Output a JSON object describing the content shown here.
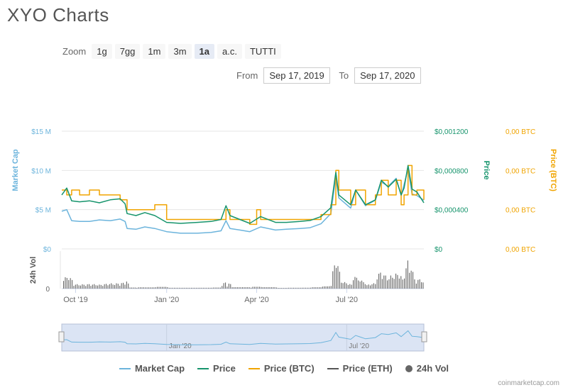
{
  "title": "XYO Charts",
  "zoom": {
    "label": "Zoom",
    "buttons": [
      "1g",
      "7gg",
      "1m",
      "3m",
      "1a",
      "a.c.",
      "TUTTI"
    ],
    "active": "1a"
  },
  "range": {
    "from_label": "From",
    "from_value": "Sep 17, 2019",
    "to_label": "To",
    "to_value": "Sep 17, 2020"
  },
  "colors": {
    "market_cap": "#6cb4dc",
    "price": "#16946c",
    "price_btc": "#f0a400",
    "price_eth": "#555555",
    "volume": "#666666"
  },
  "chart_data": {
    "type": "line",
    "x_start": "2019-09-17",
    "x_end": "2020-09-17",
    "x_tick_labels": [
      {
        "date": "2019-10-01",
        "label": "Oct '19"
      },
      {
        "date": "2020-01-01",
        "label": "Jan '20"
      },
      {
        "date": "2020-04-01",
        "label": "Apr '20"
      },
      {
        "date": "2020-07-01",
        "label": "Jul '20"
      }
    ],
    "navigator_tick_labels": [
      {
        "date": "2020-01-01",
        "label": "Jan '20"
      },
      {
        "date": "2020-07-01",
        "label": "Jul '20"
      }
    ],
    "left_axis": {
      "title": "Market Cap",
      "ticks": [
        {
          "v": 0,
          "label": "$0"
        },
        {
          "v": 5,
          "label": "$5 M"
        },
        {
          "v": 10,
          "label": "$10 M"
        },
        {
          "v": 15,
          "label": "$15 M"
        }
      ],
      "ylim": [
        0,
        15
      ]
    },
    "price_axis": {
      "title": "Price",
      "ticks": [
        {
          "v": 0,
          "label": "$0"
        },
        {
          "v": 0.0004,
          "label": "$0,000400"
        },
        {
          "v": 0.0008,
          "label": "$0,000800"
        },
        {
          "v": 0.0012,
          "label": "$0,001200"
        }
      ],
      "ylim": [
        0,
        0.0012
      ]
    },
    "btc_axis": {
      "title": "Price (BTC)",
      "ticks": [
        {
          "v": 0,
          "label": "0,00 BTC"
        },
        {
          "v": 0.4,
          "label": "0,00 BTC"
        },
        {
          "v": 0.8,
          "label": "0,00 BTC"
        },
        {
          "v": 1.2,
          "label": "0,00 BTC"
        }
      ],
      "ylim": [
        0,
        1.2
      ]
    },
    "volume_axis": {
      "title": "24h Vol",
      "ticks": [
        {
          "v": 0,
          "label": "0"
        }
      ]
    },
    "legend": [
      "Market Cap",
      "Price",
      "Price (BTC)",
      "Price (ETH)",
      "24h Vol"
    ],
    "series": [
      {
        "name": "Market Cap",
        "points": [
          [
            "2019-09-17",
            4.8
          ],
          [
            "2019-09-22",
            5.0
          ],
          [
            "2019-09-27",
            3.6
          ],
          [
            "2019-10-05",
            3.5
          ],
          [
            "2019-10-15",
            3.5
          ],
          [
            "2019-10-25",
            3.7
          ],
          [
            "2019-11-05",
            3.6
          ],
          [
            "2019-11-15",
            3.8
          ],
          [
            "2019-11-20",
            3.5
          ],
          [
            "2019-11-22",
            2.6
          ],
          [
            "2019-12-01",
            2.5
          ],
          [
            "2019-12-10",
            2.8
          ],
          [
            "2019-12-20",
            2.6
          ],
          [
            "2020-01-01",
            2.2
          ],
          [
            "2020-01-15",
            2.0
          ],
          [
            "2020-02-01",
            2.0
          ],
          [
            "2020-02-15",
            2.1
          ],
          [
            "2020-02-25",
            2.3
          ],
          [
            "2020-03-01",
            3.6
          ],
          [
            "2020-03-05",
            2.6
          ],
          [
            "2020-03-15",
            2.4
          ],
          [
            "2020-03-25",
            2.2
          ],
          [
            "2020-04-05",
            2.8
          ],
          [
            "2020-04-20",
            2.4
          ],
          [
            "2020-05-01",
            2.5
          ],
          [
            "2020-05-15",
            2.6
          ],
          [
            "2020-05-25",
            2.7
          ],
          [
            "2020-06-05",
            3.2
          ],
          [
            "2020-06-15",
            4.5
          ],
          [
            "2020-06-20",
            9.2
          ],
          [
            "2020-06-23",
            6.5
          ],
          [
            "2020-07-05",
            5.2
          ],
          [
            "2020-07-10",
            7.5
          ],
          [
            "2020-07-20",
            5.5
          ],
          [
            "2020-07-30",
            6.2
          ],
          [
            "2020-08-05",
            8.5
          ],
          [
            "2020-08-12",
            8.0
          ],
          [
            "2020-08-20",
            9.0
          ],
          [
            "2020-08-25",
            6.8
          ],
          [
            "2020-08-28",
            8.2
          ],
          [
            "2020-09-01",
            10.2
          ],
          [
            "2020-09-05",
            7.0
          ],
          [
            "2020-09-10",
            6.8
          ],
          [
            "2020-09-17",
            6.2
          ]
        ]
      },
      {
        "name": "Price",
        "points": [
          [
            "2019-09-17",
            0.00055
          ],
          [
            "2019-09-22",
            0.00062
          ],
          [
            "2019-09-27",
            0.00049
          ],
          [
            "2019-10-05",
            0.00048
          ],
          [
            "2019-10-15",
            0.00049
          ],
          [
            "2019-10-25",
            0.00047
          ],
          [
            "2019-11-05",
            0.0005
          ],
          [
            "2019-11-15",
            0.00051
          ],
          [
            "2019-11-20",
            0.00046
          ],
          [
            "2019-11-22",
            0.00036
          ],
          [
            "2019-12-01",
            0.00034
          ],
          [
            "2019-12-10",
            0.00037
          ],
          [
            "2019-12-20",
            0.00034
          ],
          [
            "2020-01-01",
            0.00027
          ],
          [
            "2020-01-15",
            0.00026
          ],
          [
            "2020-02-01",
            0.00027
          ],
          [
            "2020-02-15",
            0.00028
          ],
          [
            "2020-02-25",
            0.0003
          ],
          [
            "2020-03-01",
            0.00044
          ],
          [
            "2020-03-05",
            0.00034
          ],
          [
            "2020-03-15",
            0.0003
          ],
          [
            "2020-03-25",
            0.00026
          ],
          [
            "2020-04-05",
            0.00033
          ],
          [
            "2020-04-20",
            0.00027
          ],
          [
            "2020-05-01",
            0.00027
          ],
          [
            "2020-05-15",
            0.00028
          ],
          [
            "2020-05-25",
            0.00029
          ],
          [
            "2020-06-05",
            0.00033
          ],
          [
            "2020-06-15",
            0.00042
          ],
          [
            "2020-06-20",
            0.00078
          ],
          [
            "2020-06-23",
            0.00055
          ],
          [
            "2020-07-05",
            0.00045
          ],
          [
            "2020-07-10",
            0.0006
          ],
          [
            "2020-07-20",
            0.00045
          ],
          [
            "2020-07-30",
            0.0005
          ],
          [
            "2020-08-05",
            0.0007
          ],
          [
            "2020-08-12",
            0.00063
          ],
          [
            "2020-08-20",
            0.00071
          ],
          [
            "2020-08-25",
            0.00055
          ],
          [
            "2020-08-28",
            0.00062
          ],
          [
            "2020-09-01",
            0.00085
          ],
          [
            "2020-09-05",
            0.00061
          ],
          [
            "2020-09-10",
            0.00058
          ],
          [
            "2020-09-17",
            0.00047
          ]
        ]
      },
      {
        "name": "Price (BTC)",
        "points": [
          [
            "2019-09-17",
            0.6
          ],
          [
            "2019-09-22",
            0.55
          ],
          [
            "2019-09-27",
            0.6
          ],
          [
            "2019-10-05",
            0.55
          ],
          [
            "2019-10-15",
            0.6
          ],
          [
            "2019-10-25",
            0.55
          ],
          [
            "2019-11-05",
            0.55
          ],
          [
            "2019-11-15",
            0.5
          ],
          [
            "2019-11-20",
            0.5
          ],
          [
            "2019-11-22",
            0.4
          ],
          [
            "2019-12-10",
            0.4
          ],
          [
            "2019-12-20",
            0.45
          ],
          [
            "2020-01-01",
            0.3
          ],
          [
            "2020-02-01",
            0.3
          ],
          [
            "2020-02-25",
            0.3
          ],
          [
            "2020-03-01",
            0.4
          ],
          [
            "2020-03-05",
            0.3
          ],
          [
            "2020-03-25",
            0.25
          ],
          [
            "2020-04-01",
            0.4
          ],
          [
            "2020-04-05",
            0.3
          ],
          [
            "2020-04-20",
            0.3
          ],
          [
            "2020-05-01",
            0.3
          ],
          [
            "2020-05-25",
            0.3
          ],
          [
            "2020-06-05",
            0.35
          ],
          [
            "2020-06-15",
            0.45
          ],
          [
            "2020-06-20",
            0.8
          ],
          [
            "2020-06-23",
            0.6
          ],
          [
            "2020-07-05",
            0.45
          ],
          [
            "2020-07-10",
            0.6
          ],
          [
            "2020-07-20",
            0.45
          ],
          [
            "2020-07-30",
            0.55
          ],
          [
            "2020-08-05",
            0.7
          ],
          [
            "2020-08-12",
            0.55
          ],
          [
            "2020-08-20",
            0.7
          ],
          [
            "2020-08-25",
            0.45
          ],
          [
            "2020-08-28",
            0.55
          ],
          [
            "2020-09-01",
            0.85
          ],
          [
            "2020-09-05",
            0.55
          ],
          [
            "2020-09-10",
            0.6
          ],
          [
            "2020-09-17",
            0.5
          ]
        ]
      }
    ]
  },
  "credit": "coinmarketcap.com"
}
